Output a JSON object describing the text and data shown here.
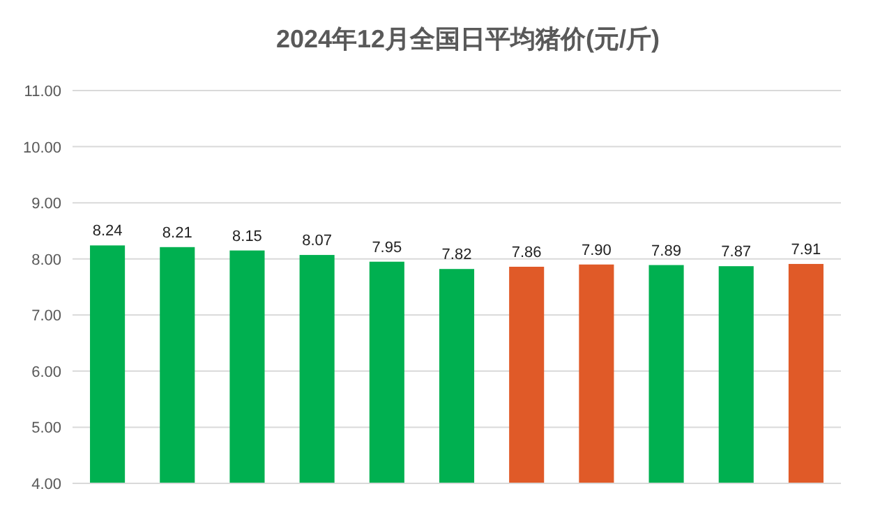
{
  "chart_data": {
    "type": "bar",
    "title": "2024年12月全国日平均猪价(元/斤)",
    "categories": [
      null,
      null,
      null,
      null,
      null,
      null,
      null,
      null,
      null,
      null,
      null
    ],
    "values": [
      8.24,
      8.21,
      8.15,
      8.07,
      7.95,
      7.82,
      7.86,
      7.9,
      7.89,
      7.87,
      7.91
    ],
    "colors": [
      "#00b050",
      "#00b050",
      "#00b050",
      "#00b050",
      "#00b050",
      "#00b050",
      "#e05a28",
      "#e05a28",
      "#00b050",
      "#00b050",
      "#e05a28"
    ],
    "value_labels": [
      "8.24",
      "8.21",
      "8.15",
      "8.07",
      "7.95",
      "7.82",
      "7.86",
      "7.90",
      "7.89",
      "7.87",
      "7.91"
    ],
    "ylim": [
      4,
      11
    ],
    "yticks": [
      {
        "value": 4,
        "label": "4.00"
      },
      {
        "value": 5,
        "label": "5.00"
      },
      {
        "value": 6,
        "label": "6.00"
      },
      {
        "value": 7,
        "label": "7.00"
      },
      {
        "value": 8,
        "label": "8.00"
      },
      {
        "value": 9,
        "label": "9.00"
      },
      {
        "value": 10,
        "label": "10.00"
      },
      {
        "value": 11,
        "label": "11.00"
      }
    ],
    "grid": "y"
  }
}
